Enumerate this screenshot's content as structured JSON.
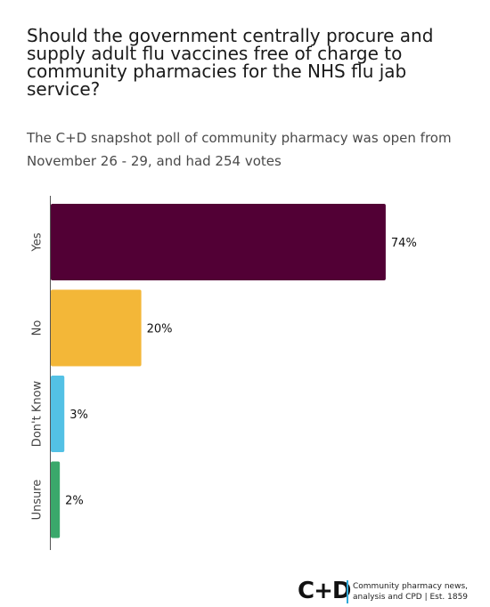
{
  "chart_data": {
    "type": "bar",
    "orientation": "horizontal",
    "title": "Should the government centrally procure and supply adult flu vaccines free of charge to community pharmacies for the NHS flu jab service?",
    "subtitle": "The C+D snapshot poll of community pharmacy was open from November 26 - 29, and had 254 votes",
    "categories": [
      "Yes",
      "No",
      "Don't Know",
      "Unsure"
    ],
    "values": [
      74,
      20,
      3,
      2
    ],
    "value_labels": [
      "74%",
      "20%",
      "3%",
      "2%"
    ],
    "colors": [
      "#520035",
      "#f3b738",
      "#53c1e5",
      "#3aa86b"
    ],
    "xlim": [
      0,
      75
    ],
    "grid": false,
    "legend": "none"
  },
  "brand": {
    "logo": "C+D",
    "tagline_line1": "Community pharmacy news,",
    "tagline_line2": "analysis and CPD | Est. 1859"
  }
}
